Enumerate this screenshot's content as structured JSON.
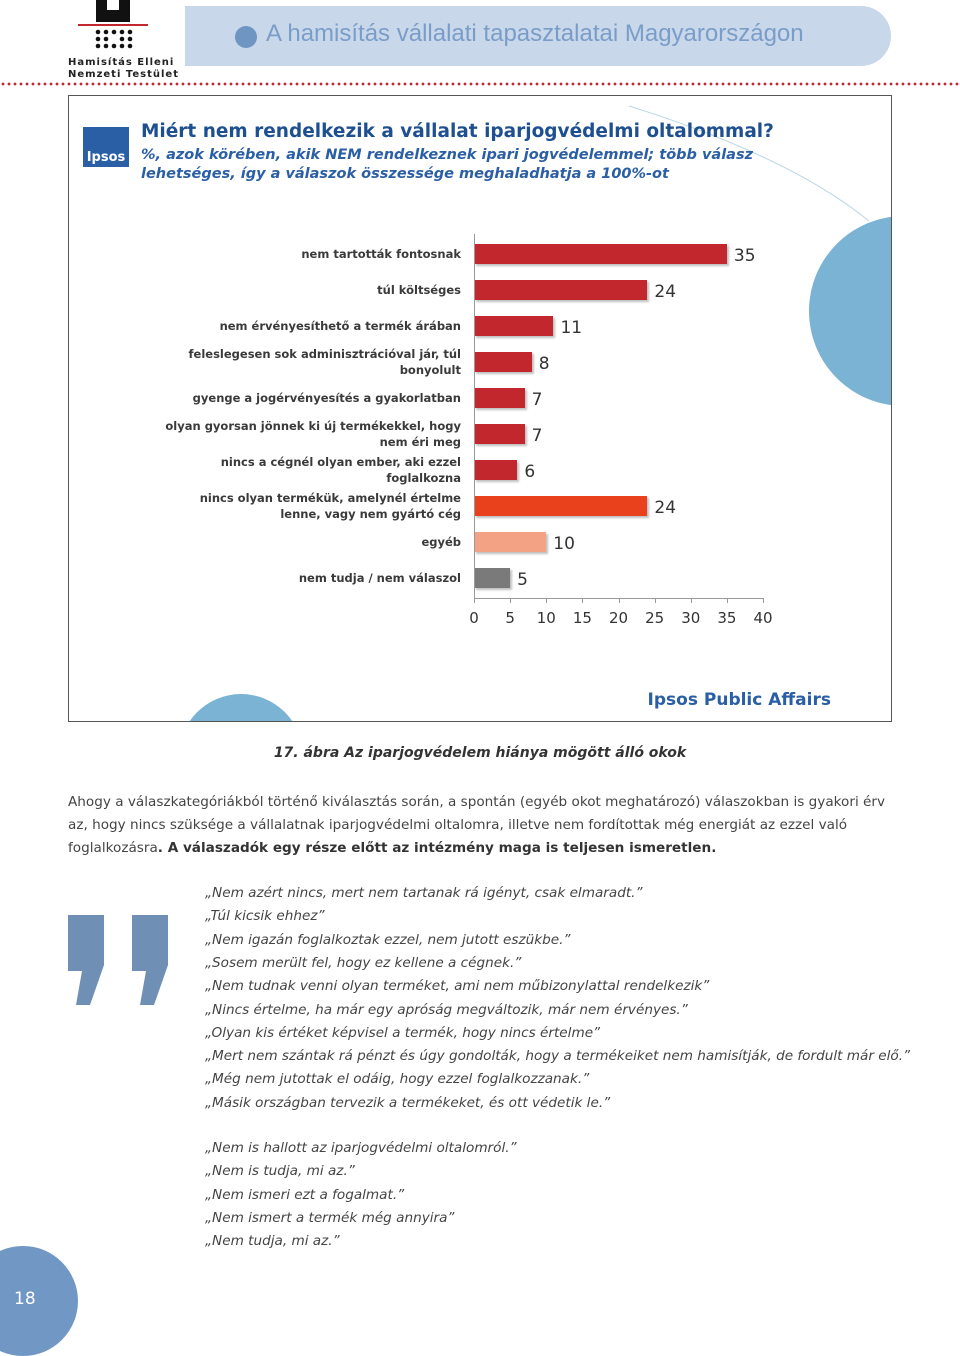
{
  "header": {
    "logo_line1": "Hamisítás Elleni",
    "logo_line2": "Nemzeti Testület",
    "title": "A hamisítás vállalati tapasztalatai Magyarországon"
  },
  "chart_data": {
    "type": "bar",
    "orientation": "horizontal",
    "logo": "Ipsos",
    "title": "Miért nem rendelkezik a vállalat iparjogvédelmi oltalommal?",
    "subtitle": "%, azok körében, akik NEM rendelkeznek ipari jogvédelemmel; több válasz lehetséges, így a válaszok összessége meghaladhatja a 100%-ot",
    "categories": [
      "nem tartották fontosnak",
      "túl költséges",
      "nem érvényesíthető a termék árában",
      "feleslegesen sok adminisztrációval jár, túl bonyolult",
      "gyenge a jogérvényesítés a gyakorlatban",
      "olyan gyorsan jönnek ki új termékekkel, hogy nem éri meg",
      "nincs a cégnél olyan ember, aki ezzel foglalkozna",
      "nincs olyan termékük, amelynél értelme lenne, vagy nem gyártó cég",
      "egyéb",
      "nem tudja / nem válaszol"
    ],
    "values": [
      35,
      24,
      11,
      8,
      7,
      7,
      6,
      24,
      10,
      5
    ],
    "colors": [
      "#c1272d",
      "#c1272d",
      "#c1272d",
      "#c1272d",
      "#c1272d",
      "#c1272d",
      "#c1272d",
      "#e8411c",
      "#f3a284",
      "#7a7a7a"
    ],
    "xlim": [
      0,
      40
    ],
    "xticks": [
      0,
      5,
      10,
      15,
      20,
      25,
      30,
      35,
      40
    ],
    "source": "Ipsos Public Affairs"
  },
  "caption": "17. ábra Az iparjogvédelem hiánya mögött álló okok",
  "paragraph": {
    "text": "Ahogy a válaszkategóriákból történő kiválasztás során, a spontán (egyéb okot meghatározó) válaszokban is gyakori érv az, hogy nincs szüksége a vállalatnak iparjogvédelmi oltalomra, illetve nem fordítottak még energiát az ezzel való foglalkozásra",
    "bold": ". A válaszadók egy része előtt az intézmény maga is teljesen ismeretlen."
  },
  "quotes": {
    "group1": [
      "„Nem azért nincs, mert nem tartanak rá igényt, csak elmaradt.”",
      "„Túl kicsik ehhez”",
      "„Nem igazán foglalkoztak ezzel, nem jutott eszükbe.”",
      "„Sosem merült fel, hogy ez kellene a cégnek.”",
      "„Nem tudnak venni olyan terméket, ami nem műbizonylattal rendelkezik”",
      "„Nincs értelme, ha már egy apróság megváltozik, már nem érvényes.”",
      "„Olyan kis értéket képvisel a termék, hogy nincs értelme”",
      "„Mert nem szántak rá pénzt és úgy gondolták, hogy a termékeiket nem hamisítják, de fordult már elő.”",
      "„Még nem jutottak el odáig, hogy ezzel foglalkozzanak.”",
      "„Másik országban tervezik a termékeket, és ott védetik le.”"
    ],
    "group2": [
      "„Nem is hallott az iparjogvédelmi oltalomról.”",
      "„Nem is tudja, mi az.”",
      "„Nem ismeri ezt a fogalmat.”",
      "„Nem ismert a termék még annyira”",
      "„Nem tudja, mi az.”"
    ]
  },
  "page_number": "18"
}
